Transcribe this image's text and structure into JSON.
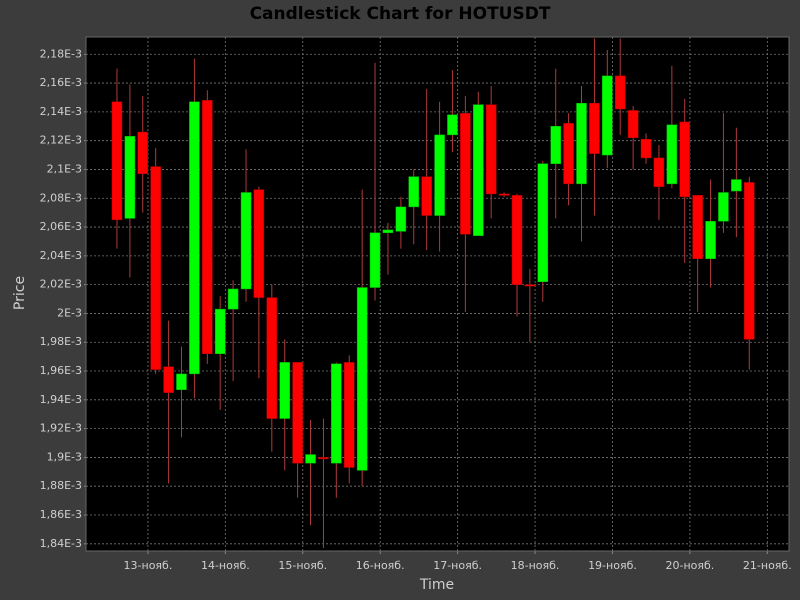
{
  "chart_data": {
    "type": "candlestick",
    "title": "Candlestick Chart for HOTUSDT",
    "x_label": "Time",
    "y_label": "Price",
    "x": [
      12.6,
      12.767,
      12.933,
      13.1,
      13.267,
      13.433,
      13.6,
      13.767,
      13.933,
      14.1,
      14.267,
      14.433,
      14.6,
      14.767,
      14.933,
      15.1,
      15.267,
      15.433,
      15.6,
      15.767,
      15.933,
      16.1,
      16.267,
      16.433,
      16.6,
      16.767,
      16.933,
      17.1,
      17.267,
      17.433,
      17.6,
      17.767,
      17.933,
      18.1,
      18.267,
      18.433,
      18.6,
      18.767,
      18.933,
      19.1,
      19.267,
      19.433,
      19.6,
      19.767,
      19.933,
      20.1,
      20.267,
      20.433,
      20.6,
      20.767
    ],
    "open": [
      0.002147,
      0.002066,
      0.002126,
      0.002102,
      0.001963,
      0.001947,
      0.001958,
      0.002148,
      0.001972,
      0.002003,
      0.002017,
      0.002086,
      0.002011,
      0.001927,
      0.001966,
      0.001896,
      0.0019,
      0.001896,
      0.001966,
      0.001891,
      0.002018,
      0.002056,
      0.002057,
      0.002074,
      0.002095,
      0.002068,
      0.002124,
      0.002139,
      0.002054,
      0.002145,
      0.002083,
      0.002082,
      0.00202,
      0.002022,
      0.002104,
      0.002132,
      0.00209,
      0.002146,
      0.00211,
      0.002165,
      0.002141,
      0.002121,
      0.002108,
      0.00209,
      0.002133,
      0.002082,
      0.002038,
      0.002064,
      0.002085,
      0.002091
    ],
    "high": [
      0.00217,
      0.002159,
      0.002151,
      0.002115,
      0.001995,
      0.001977,
      0.002177,
      0.002155,
      0.002012,
      0.002023,
      0.002114,
      0.002088,
      0.00202,
      0.001982,
      0.001966,
      0.001926,
      0.001927,
      0.001966,
      0.001971,
      0.002086,
      0.002174,
      0.002063,
      0.002081,
      0.0021,
      0.002156,
      0.002147,
      0.002169,
      0.002151,
      0.002154,
      0.002158,
      0.002084,
      0.002083,
      0.002031,
      0.002106,
      0.00217,
      0.002139,
      0.002158,
      0.002191,
      0.002183,
      0.002191,
      0.002144,
      0.002125,
      0.002117,
      0.002172,
      0.002149,
      0.002082,
      0.002093,
      0.002139,
      0.002129,
      0.002095
    ],
    "low": [
      0.002045,
      0.002025,
      0.00207,
      0.001958,
      0.001882,
      0.001914,
      0.001941,
      0.001965,
      0.001933,
      0.001953,
      0.002008,
      0.001955,
      0.001904,
      0.001891,
      0.001872,
      0.001853,
      0.001837,
      0.001872,
      0.001882,
      0.00188,
      0.002009,
      0.002027,
      0.002045,
      0.002048,
      0.002044,
      0.002043,
      0.002112,
      0.002001,
      0.002054,
      0.002066,
      0.002081,
      0.001998,
      0.00198,
      0.002008,
      0.002066,
      0.002075,
      0.00205,
      0.002068,
      0.002101,
      0.002124,
      0.0021,
      0.002104,
      0.002065,
      0.002087,
      0.002035,
      0.002001,
      0.002018,
      0.002056,
      0.002053,
      0.001961
    ],
    "close": [
      0.002065,
      0.002123,
      0.002097,
      0.001961,
      0.001945,
      0.001958,
      0.002147,
      0.001972,
      0.002003,
      0.002017,
      0.002084,
      0.002011,
      0.001927,
      0.001966,
      0.001896,
      0.001902,
      0.001899,
      0.001965,
      0.001893,
      0.002018,
      0.002056,
      0.002058,
      0.002074,
      0.002095,
      0.002068,
      0.002124,
      0.002138,
      0.002055,
      0.002145,
      0.002083,
      0.002082,
      0.00202,
      0.002019,
      0.002104,
      0.00213,
      0.00209,
      0.002146,
      0.002111,
      0.002165,
      0.002142,
      0.002122,
      0.002108,
      0.002088,
      0.002131,
      0.002081,
      0.002038,
      0.002064,
      0.002084,
      0.002093,
      0.001982
    ],
    "up_color": "#00ff00",
    "down_color": "#ff0000",
    "wick_color": "#b03a3a",
    "xlim": [
      12.2,
      21.28
    ],
    "xticks": [
      {
        "value": 13,
        "label": "13-нояб."
      },
      {
        "value": 14,
        "label": "14-нояб."
      },
      {
        "value": 15,
        "label": "15-нояб."
      },
      {
        "value": 16,
        "label": "16-нояб."
      },
      {
        "value": 17,
        "label": "17-нояб."
      },
      {
        "value": 18,
        "label": "18-нояб."
      },
      {
        "value": 19,
        "label": "19-нояб."
      },
      {
        "value": 20,
        "label": "20-нояб."
      },
      {
        "value": 21,
        "label": "21-нояб."
      }
    ],
    "ylim": [
      0.001835,
      0.002192
    ],
    "yticks": [
      {
        "value": 0.00184,
        "label": "1,84E-3"
      },
      {
        "value": 0.00186,
        "label": "1,86E-3"
      },
      {
        "value": 0.00188,
        "label": "1,88E-3"
      },
      {
        "value": 0.0019,
        "label": "1,9E-3"
      },
      {
        "value": 0.00192,
        "label": "1,92E-3"
      },
      {
        "value": 0.00194,
        "label": "1,94E-3"
      },
      {
        "value": 0.00196,
        "label": "1,96E-3"
      },
      {
        "value": 0.00198,
        "label": "1,98E-3"
      },
      {
        "value": 0.002,
        "label": "2E-3"
      },
      {
        "value": 0.00202,
        "label": "2,02E-3"
      },
      {
        "value": 0.00204,
        "label": "2,04E-3"
      },
      {
        "value": 0.00206,
        "label": "2,06E-3"
      },
      {
        "value": 0.00208,
        "label": "2,08E-3"
      },
      {
        "value": 0.0021,
        "label": "2,1E-3"
      },
      {
        "value": 0.00212,
        "label": "2,12E-3"
      },
      {
        "value": 0.00214,
        "label": "2,14E-3"
      },
      {
        "value": 0.00216,
        "label": "2,16E-3"
      },
      {
        "value": 0.00218,
        "label": "2,18E-3"
      }
    ],
    "grid": true
  }
}
